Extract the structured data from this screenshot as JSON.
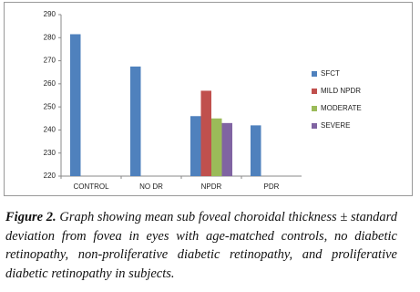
{
  "chart_data": {
    "type": "bar",
    "categories": [
      "CONTROL",
      "NO DR",
      "NPDR",
      "PDR"
    ],
    "series": [
      {
        "name": "SFCT",
        "color": "#4f81bd",
        "values": [
          281.5,
          267.5,
          246,
          242
        ]
      },
      {
        "name": "MILD NPDR",
        "color": "#c0504d",
        "values": [
          null,
          null,
          257,
          null
        ]
      },
      {
        "name": "MODERATE",
        "color": "#9bbb59",
        "values": [
          null,
          null,
          245,
          null
        ]
      },
      {
        "name": "SEVERE",
        "color": "#8064a2",
        "values": [
          null,
          null,
          243,
          null
        ]
      }
    ],
    "ylim": [
      220,
      290
    ],
    "yticks": [
      220,
      230,
      240,
      250,
      260,
      270,
      280,
      290
    ],
    "grid": false,
    "legend": "right"
  },
  "caption": {
    "label": "Figure 2.",
    "text": "Graph showing mean sub foveal choroidal thickness ± standard deviation from fovea in eyes with age-matched controls, no diabetic retinopathy, non-proliferative diabetic retinopathy, and proliferative diabetic retinopathy in subjects."
  }
}
